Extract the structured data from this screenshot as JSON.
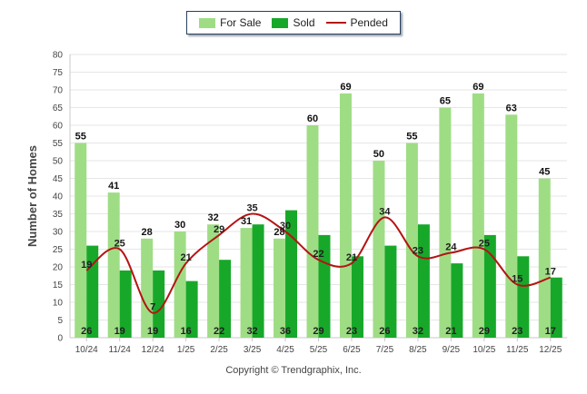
{
  "colors": {
    "for_sale": "#9fdd85",
    "sold": "#17a82a",
    "pended": "#b41414",
    "grid": "#e6e6e6",
    "axis": "#c8c8c8"
  },
  "chart_data": {
    "type": "bar",
    "title": "",
    "xlabel": "",
    "ylabel": "Number of Homes",
    "ylim": [
      0,
      80
    ],
    "ytick_step": 5,
    "categories": [
      "10/24",
      "11/24",
      "12/24",
      "1/25",
      "2/25",
      "3/25",
      "4/25",
      "5/25",
      "6/25",
      "7/25",
      "8/25",
      "9/25",
      "10/25",
      "11/25",
      "12/25"
    ],
    "series": [
      {
        "name": "For Sale",
        "type": "bar",
        "values": [
          55,
          41,
          28,
          30,
          32,
          31,
          28,
          60,
          69,
          50,
          55,
          65,
          69,
          63,
          45
        ]
      },
      {
        "name": "Sold",
        "type": "bar",
        "values": [
          26,
          19,
          19,
          16,
          22,
          32,
          36,
          29,
          23,
          26,
          32,
          21,
          29,
          23,
          17
        ]
      },
      {
        "name": "Pended",
        "type": "line",
        "smooth": true,
        "values": [
          19,
          25,
          7,
          21,
          29,
          35,
          30,
          22,
          21,
          34,
          23,
          24,
          25,
          15,
          17
        ]
      }
    ],
    "legend": {
      "position": "top-center",
      "labels": [
        "For Sale",
        "Sold",
        "Pended"
      ]
    }
  },
  "footer": {
    "copyright": "Copyright © Trendgraphix, Inc."
  }
}
